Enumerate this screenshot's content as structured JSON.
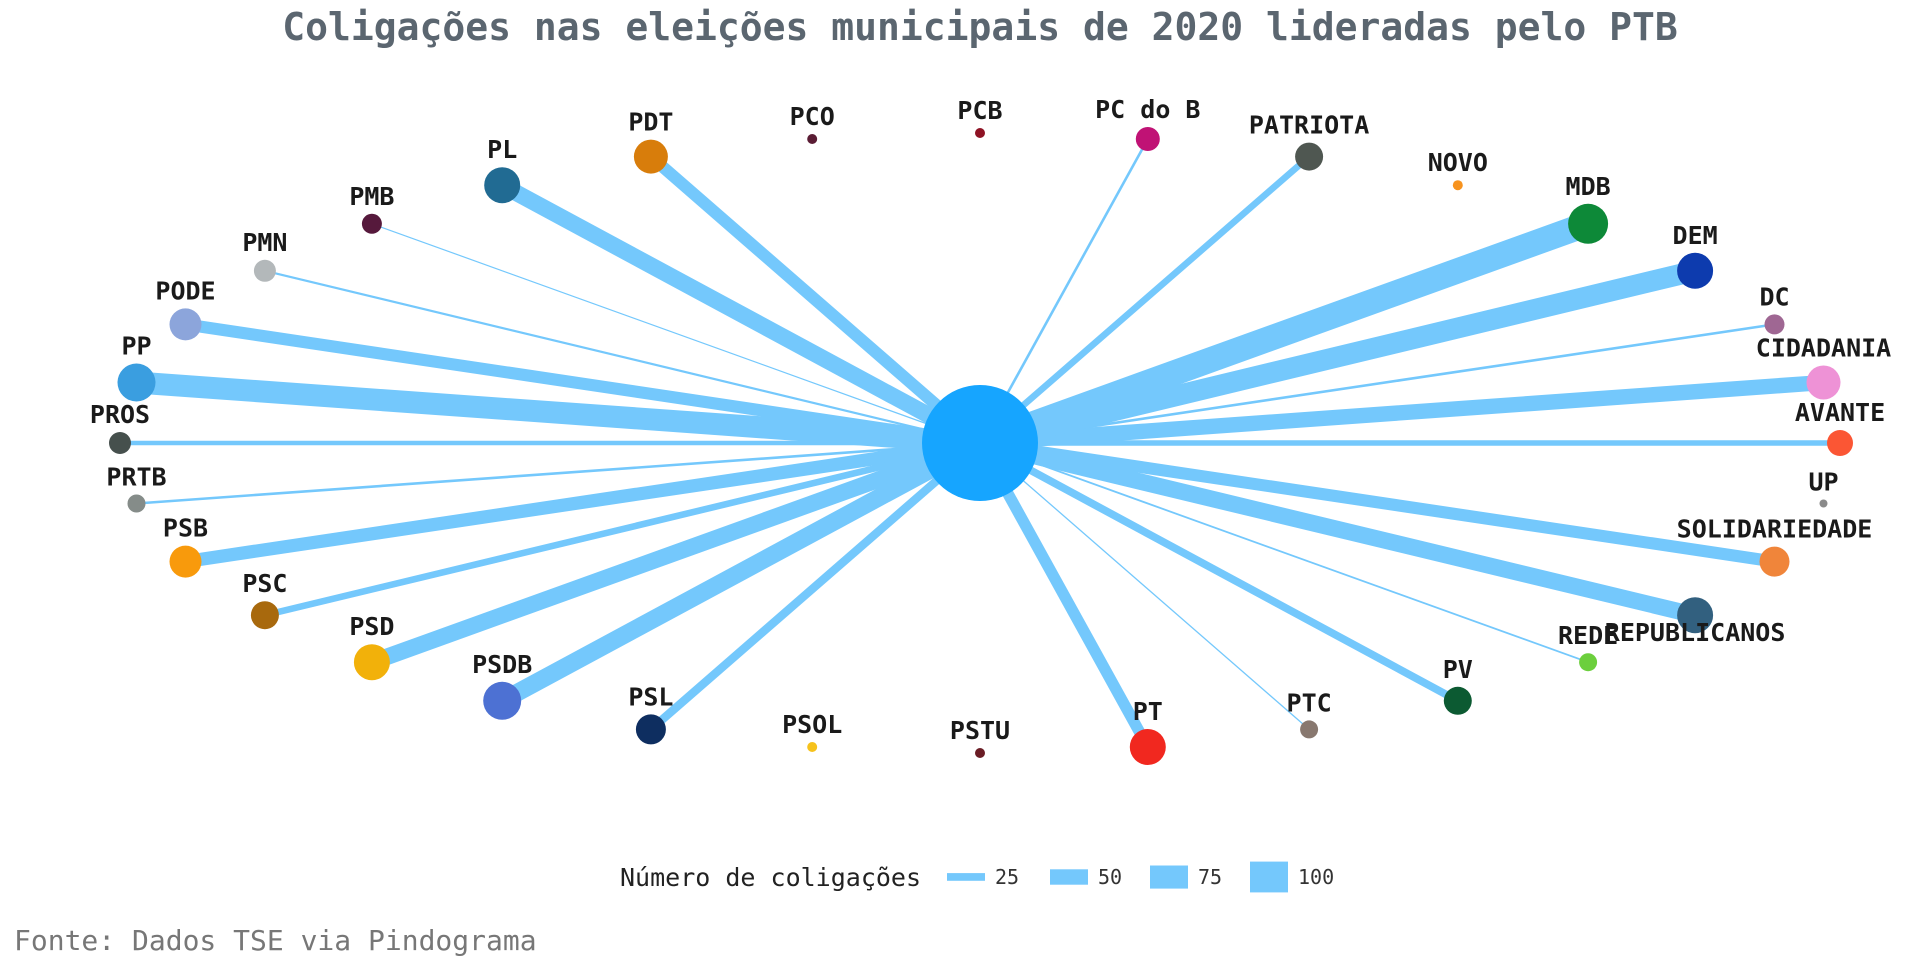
{
  "chart_data": {
    "type": "network",
    "title": "Coligações nas eleições municipais de 2020 lideradas pelo PTB",
    "center": {
      "party": "PTB",
      "color": "#16a5ff"
    },
    "edge_color": "#74c8fc",
    "nodes": [
      {
        "party": "PROS",
        "coalitions": 20,
        "color": "#46504d",
        "node_size": 11,
        "label_side": "above"
      },
      {
        "party": "PRTB",
        "coalitions": 12,
        "color": "#858c89",
        "node_size": 9,
        "label_side": "above"
      },
      {
        "party": "PSB",
        "coalitions": 60,
        "color": "#f89a0c",
        "node_size": 16,
        "label_side": "above"
      },
      {
        "party": "PSC",
        "coalitions": 30,
        "color": "#a8690d",
        "node_size": 14,
        "label_side": "above"
      },
      {
        "party": "PSD",
        "coalitions": 75,
        "color": "#f2b10a",
        "node_size": 18,
        "label_side": "above"
      },
      {
        "party": "PSDB",
        "coalitions": 80,
        "color": "#4d71d3",
        "node_size": 19,
        "label_side": "above"
      },
      {
        "party": "PSL",
        "coalitions": 38,
        "color": "#0e2e60",
        "node_size": 15,
        "label_side": "above"
      },
      {
        "party": "PSOL",
        "coalitions": 0,
        "color": "#f6c21c",
        "node_size": 5,
        "label_side": "above"
      },
      {
        "party": "PSTU",
        "coalitions": 0,
        "color": "#6a1d25",
        "node_size": 5,
        "label_side": "above"
      },
      {
        "party": "PT",
        "coalitions": 52,
        "color": "#f1281f",
        "node_size": 18,
        "label_side": "above"
      },
      {
        "party": "PTC",
        "coalitions": 6,
        "color": "#88786f",
        "node_size": 9,
        "label_side": "above"
      },
      {
        "party": "PV",
        "coalitions": 35,
        "color": "#0c5a32",
        "node_size": 14,
        "label_side": "above"
      },
      {
        "party": "REDE",
        "coalitions": 8,
        "color": "#6ccf3d",
        "node_size": 9,
        "label_side": "above"
      },
      {
        "party": "REPUBLICANOS",
        "coalitions": 75,
        "color": "#32607f",
        "node_size": 18,
        "label_side": "below"
      },
      {
        "party": "SOLIDARIEDADE",
        "coalitions": 55,
        "color": "#f0853a",
        "node_size": 15,
        "label_side": "above"
      },
      {
        "party": "UP",
        "coalitions": 0,
        "color": "#8a8a8a",
        "node_size": 4,
        "label_side": "above"
      },
      {
        "party": "AVANTE",
        "coalitions": 25,
        "color": "#fb5634",
        "node_size": 13,
        "label_side": "above"
      },
      {
        "party": "CIDADANIA",
        "coalitions": 70,
        "color": "#ee92d6",
        "node_size": 17,
        "label_side": "above"
      },
      {
        "party": "DC",
        "coalitions": 12,
        "color": "#9f6793",
        "node_size": 10,
        "label_side": "above"
      },
      {
        "party": "DEM",
        "coalitions": 95,
        "color": "#0d3bae",
        "node_size": 18,
        "label_side": "above"
      },
      {
        "party": "MDB",
        "coalitions": 115,
        "color": "#0d8938",
        "node_size": 20,
        "label_side": "above"
      },
      {
        "party": "NOVO",
        "coalitions": 0,
        "color": "#f7931e",
        "node_size": 5,
        "label_side": "above"
      },
      {
        "party": "PATRIOTA",
        "coalitions": 30,
        "color": "#4f5751",
        "node_size": 14,
        "label_side": "above"
      },
      {
        "party": "PC do B",
        "coalitions": 12,
        "color": "#c01275",
        "node_size": 12,
        "label_side": "above"
      },
      {
        "party": "PCB",
        "coalitions": 0,
        "color": "#8e1224",
        "node_size": 5,
        "label_side": "above"
      },
      {
        "party": "PCO",
        "coalitions": 0,
        "color": "#5a1c34",
        "node_size": 5,
        "label_side": "above"
      },
      {
        "party": "PDT",
        "coalitions": 55,
        "color": "#d87d0b",
        "node_size": 17,
        "label_side": "above"
      },
      {
        "party": "PL",
        "coalitions": 75,
        "color": "#216b93",
        "node_size": 18,
        "label_side": "above"
      },
      {
        "party": "PMB",
        "coalitions": 5,
        "color": "#56193c",
        "node_size": 10,
        "label_side": "above"
      },
      {
        "party": "PMN",
        "coalitions": 10,
        "color": "#b3b8ba",
        "node_size": 11,
        "label_side": "above"
      },
      {
        "party": "PODE",
        "coalitions": 55,
        "color": "#8ca5db",
        "node_size": 16,
        "label_side": "above"
      },
      {
        "party": "PP",
        "coalitions": 100,
        "color": "#3a9ee0",
        "node_size": 19,
        "label_side": "above"
      }
    ],
    "legend": {
      "title": "Número de coligações",
      "values": [
        25,
        50,
        75,
        100
      ],
      "labels": [
        "25",
        "50",
        "75",
        "100"
      ]
    }
  },
  "source": "Fonte: Dados TSE via Pindograma"
}
